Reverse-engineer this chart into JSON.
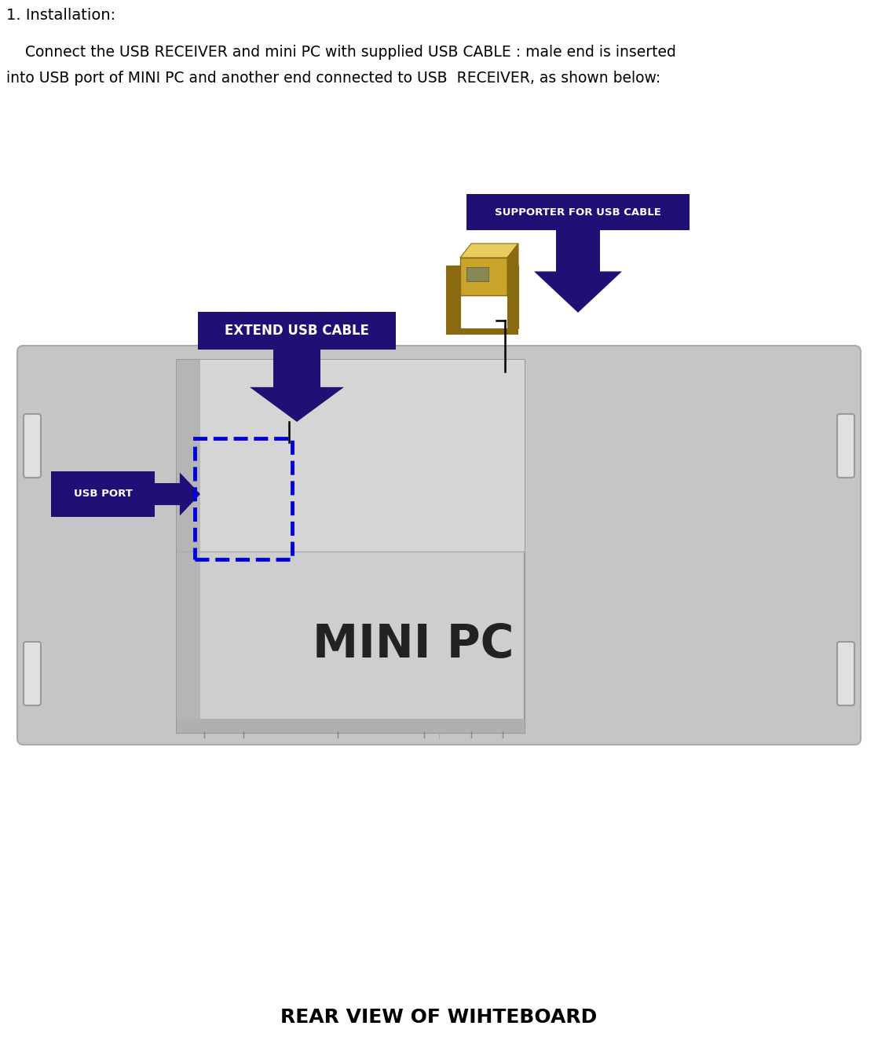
{
  "background_color": "#ffffff",
  "title_text": "1. Installation:",
  "body_text_line1": "    Connect the USB RECEIVER and mini PC with supplied USB CABLE : male end is inserted",
  "body_text_line2": "into USB port of MINI PC and another end connected to USB  RECEIVER, as shown below:",
  "supporter_label": "SUPPORTER FOR USB CABLE",
  "extend_label": "EXTEND USB CABLE",
  "usb_port_label": "USB PORT",
  "mini_pc_label": "MINI PC",
  "rear_view_label": "REAR VIEW OF WIHTEBOARD",
  "dark_blue": "#1e1075",
  "label_font_size": 9.5,
  "extend_font_size": 12,
  "mini_pc_font_size": 42,
  "rear_view_font_size": 18,
  "board_color": "#c5c5c5",
  "board_border": "#aaaaaa",
  "inner_pc_color": "#cecece",
  "inner_pc_border": "#999999",
  "inner_top_color": "#d5d5d5",
  "handle_color": "#e0e0e0",
  "handle_border": "#999999",
  "gold_main": "#c8a52a",
  "gold_dark": "#8a6a10",
  "gold_light": "#e8cc60",
  "dashed_blue": "#0000dd"
}
